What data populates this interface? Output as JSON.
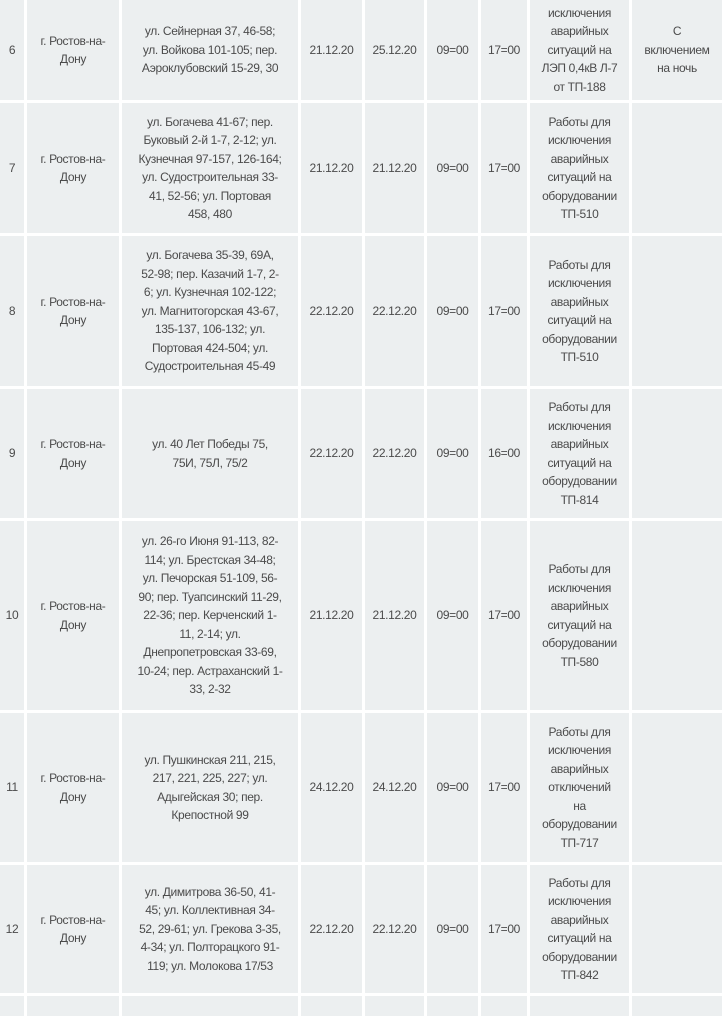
{
  "table": {
    "rows": [
      {
        "num": "6",
        "city": "г. Ростов-на-\nДону",
        "address": "ул. Сейнерная 37, 46-58;\nул. Войкова 101-105; пер.\nАэроклубовский 15-29, 30",
        "date_from": "21.12.20",
        "date_to": "25.12.20",
        "time_from": "09=00",
        "time_to": "17=00",
        "reason": "исключения\nаварийных\nситуаций на\nЛЭП 0,4кВ Л-7\nот ТП-188",
        "note": "С\nвключением\nна ночь"
      },
      {
        "num": "7",
        "city": "г. Ростов-на-\nДону",
        "address": "ул. Богачева 41-67; пер.\nБуковый 2-й 1-7, 2-12; ул.\nКузнечная 97-157, 126-164;\nул. Судостроительная 33-\n41, 52-56; ул. Портовая\n458, 480",
        "date_from": "21.12.20",
        "date_to": "21.12.20",
        "time_from": "09=00",
        "time_to": "17=00",
        "reason": "Работы для\nисключения\nаварийных\nситуаций на\nоборудовании\nТП-510",
        "note": ""
      },
      {
        "num": "8",
        "city": "г. Ростов-на-\nДону",
        "address": "ул. Богачева 35-39, 69А,\n52-98; пер. Казачий 1-7, 2-\n6; ул. Кузнечная 102-122;\nул. Магнитогорская 43-67,\n135-137, 106-132; ул.\nПортовая 424-504; ул.\nСудостроительная 45-49",
        "date_from": "22.12.20",
        "date_to": "22.12.20",
        "time_from": "09=00",
        "time_to": "17=00",
        "reason": "Работы для\nисключения\nаварийных\nситуаций на\nоборудовании\nТП-510",
        "note": ""
      },
      {
        "num": "9",
        "city": "г. Ростов-на-\nДону",
        "address": "ул. 40 Лет Победы 75,\n75И, 75Л, 75/2",
        "date_from": "22.12.20",
        "date_to": "22.12.20",
        "time_from": "09=00",
        "time_to": "16=00",
        "reason": "Работы для\nисключения\nаварийных\nситуаций на\nоборудовании\nТП-814",
        "note": ""
      },
      {
        "num": "10",
        "city": "г. Ростов-на-\nДону",
        "address": "ул. 26-го Июня 91-113, 82-\n114; ул. Брестская 34-48;\nул. Печорская 51-109, 56-\n90; пер. Туапсинский 11-29,\n22-36; пер. Керченский 1-\n11, 2-14; ул.\nДнепропетровская 33-69,\n10-24; пер. Астраханский 1-\n33, 2-32",
        "date_from": "21.12.20",
        "date_to": "21.12.20",
        "time_from": "09=00",
        "time_to": "17=00",
        "reason": "Работы для\nисключения\nаварийных\nситуаций на\nоборудовании\nТП-580",
        "note": ""
      },
      {
        "num": "11",
        "city": "г. Ростов-на-\nДону",
        "address": "ул. Пушкинская 211, 215,\n217, 221, 225, 227; ул.\nАдыгейская 30; пер.\nКрепостной 99",
        "date_from": "24.12.20",
        "date_to": "24.12.20",
        "time_from": "09=00",
        "time_to": "17=00",
        "reason": "Работы для\nисключения\nаварийных\nотключений\nна\nоборудовании\nТП-717",
        "note": ""
      },
      {
        "num": "12",
        "city": "г. Ростов-на-\nДону",
        "address": "ул. Димитрова 36-50, 41-\n45; ул. Коллективная 34-\n52, 29-61; ул. Грекова 3-35,\n4-34; ул. Полторацкого 91-\n119; ул. Молокова 17/53",
        "date_from": "22.12.20",
        "date_to": "22.12.20",
        "time_from": "09=00",
        "time_to": "17=00",
        "reason": "Работы для\nисключения\nаварийных\nситуаций на\nоборудовании\nТП-842",
        "note": ""
      }
    ]
  }
}
